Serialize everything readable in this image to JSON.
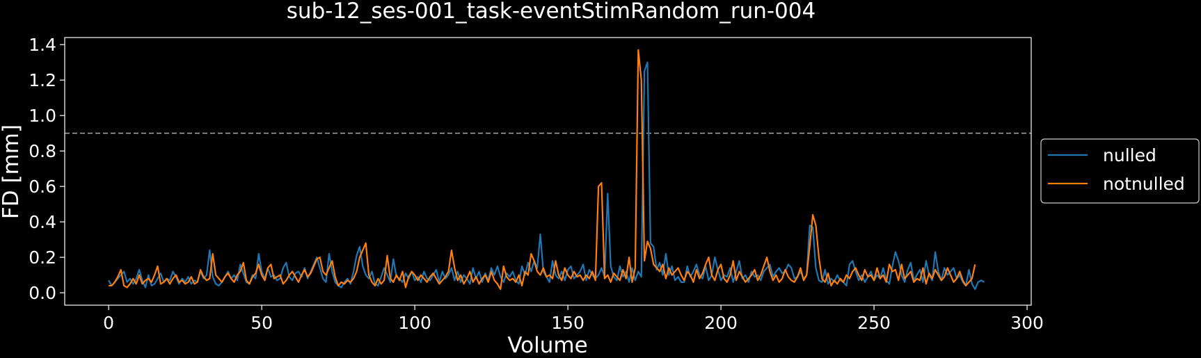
{
  "chart_data": {
    "type": "line",
    "title": "sub-12_ses-001_task-eventStimRandom_run-004",
    "xlabel": "Volume",
    "ylabel": "FD [mm]",
    "xlim": [
      -14.35,
      301.35
    ],
    "ylim": [
      -0.07,
      1.44
    ],
    "xticks": [
      0,
      50,
      100,
      150,
      200,
      250,
      300
    ],
    "yticks": [
      0.0,
      0.2,
      0.4,
      0.6,
      0.8,
      1.0,
      1.2,
      1.4
    ],
    "threshold": 0.9,
    "grid": false,
    "legend_position": "outside-right",
    "colors": {
      "background": "#000000",
      "axes": "#ffffff",
      "text": "#ffffff",
      "threshold_line": "#aaaaaa",
      "legend_border": "#cccccc"
    },
    "series": [
      {
        "name": "nulled",
        "color": "#1f77b4",
        "values": [
          0.07,
          0.04,
          0.06,
          0.08,
          0.1,
          0.12,
          0.06,
          0.08,
          0.05,
          0.08,
          0.13,
          0.07,
          0.03,
          0.1,
          0.04,
          0.05,
          0.08,
          0.11,
          0.06,
          0.08,
          0.07,
          0.12,
          0.09,
          0.05,
          0.08,
          0.06,
          0.09,
          0.05,
          0.07,
          0.06,
          0.12,
          0.08,
          0.1,
          0.24,
          0.09,
          0.05,
          0.04,
          0.06,
          0.09,
          0.12,
          0.08,
          0.1,
          0.07,
          0.16,
          0.11,
          0.06,
          0.05,
          0.1,
          0.08,
          0.22,
          0.12,
          0.08,
          0.14,
          0.09,
          0.1,
          0.07,
          0.08,
          0.14,
          0.17,
          0.09,
          0.07,
          0.11,
          0.12,
          0.09,
          0.14,
          0.08,
          0.12,
          0.16,
          0.2,
          0.14,
          0.08,
          0.06,
          0.22,
          0.12,
          0.06,
          0.04,
          0.03,
          0.06,
          0.08,
          0.05,
          0.12,
          0.21,
          0.26,
          0.15,
          0.1,
          0.08,
          0.12,
          0.05,
          0.04,
          0.09,
          0.14,
          0.1,
          0.06,
          0.19,
          0.09,
          0.08,
          0.06,
          0.11,
          0.08,
          0.12,
          0.07,
          0.09,
          0.06,
          0.12,
          0.08,
          0.07,
          0.1,
          0.13,
          0.06,
          0.12,
          0.08,
          0.1,
          0.14,
          0.07,
          0.12,
          0.06,
          0.1,
          0.08,
          0.05,
          0.14,
          0.08,
          0.12,
          0.06,
          0.11,
          0.07,
          0.14,
          0.1,
          0.15,
          0.09,
          0.06,
          0.11,
          0.09,
          0.12,
          0.07,
          0.05,
          0.15,
          0.1,
          0.17,
          0.12,
          0.18,
          0.14,
          0.33,
          0.12,
          0.09,
          0.06,
          0.18,
          0.1,
          0.08,
          0.12,
          0.07,
          0.13,
          0.15,
          0.08,
          0.1,
          0.12,
          0.16,
          0.07,
          0.13,
          0.1,
          0.08,
          0.1,
          0.14,
          0.09,
          0.56,
          0.15,
          0.09,
          0.07,
          0.15,
          0.09,
          0.12,
          0.06,
          0.14,
          0.07,
          0.12,
          0.09,
          1.25,
          1.3,
          0.28,
          0.26,
          0.13,
          0.17,
          0.1,
          0.22,
          0.1,
          0.15,
          0.07,
          0.09,
          0.06,
          0.06,
          0.15,
          0.09,
          0.12,
          0.16,
          0.1,
          0.08,
          0.15,
          0.07,
          0.1,
          0.2,
          0.13,
          0.07,
          0.1,
          0.09,
          0.14,
          0.06,
          0.12,
          0.18,
          0.08,
          0.1,
          0.06,
          0.12,
          0.09,
          0.1,
          0.07,
          0.12,
          0.14,
          0.16,
          0.09,
          0.12,
          0.14,
          0.11,
          0.12,
          0.16,
          0.14,
          0.08,
          0.09,
          0.12,
          0.08,
          0.1,
          0.38,
          0.37,
          0.14,
          0.07,
          0.06,
          0.13,
          0.05,
          0.08,
          0.06,
          0.1,
          0.07,
          0.06,
          0.04,
          0.16,
          0.18,
          0.12,
          0.07,
          0.1,
          0.06,
          0.09,
          0.12,
          0.07,
          0.1,
          0.08,
          0.14,
          0.07,
          0.05,
          0.15,
          0.23,
          0.18,
          0.1,
          0.06,
          0.13,
          0.17,
          0.07,
          0.1,
          0.13,
          0.06,
          0.18,
          0.1,
          0.07,
          0.23,
          0.12,
          0.07,
          0.14,
          0.1,
          0.12,
          0.14,
          0.08,
          0.1,
          0.06,
          0.04,
          0.13,
          0.05,
          0.02,
          0.06,
          0.07,
          0.06
        ]
      },
      {
        "name": "notnulled",
        "color": "#ff7f0e",
        "values": [
          0.04,
          0.04,
          0.06,
          0.09,
          0.13,
          0.04,
          0.03,
          0.05,
          0.08,
          0.05,
          0.1,
          0.05,
          0.07,
          0.08,
          0.06,
          0.1,
          0.15,
          0.05,
          0.06,
          0.08,
          0.05,
          0.08,
          0.1,
          0.06,
          0.07,
          0.05,
          0.06,
          0.09,
          0.05,
          0.06,
          0.13,
          0.09,
          0.07,
          0.08,
          0.22,
          0.1,
          0.08,
          0.06,
          0.09,
          0.11,
          0.08,
          0.06,
          0.1,
          0.12,
          0.17,
          0.07,
          0.05,
          0.09,
          0.11,
          0.16,
          0.1,
          0.07,
          0.14,
          0.16,
          0.08,
          0.09,
          0.1,
          0.05,
          0.07,
          0.1,
          0.12,
          0.09,
          0.06,
          0.1,
          0.13,
          0.09,
          0.11,
          0.15,
          0.19,
          0.2,
          0.12,
          0.1,
          0.14,
          0.18,
          0.09,
          0.04,
          0.06,
          0.05,
          0.07,
          0.06,
          0.08,
          0.12,
          0.2,
          0.24,
          0.28,
          0.1,
          0.06,
          0.04,
          0.08,
          0.05,
          0.07,
          0.21,
          0.08,
          0.06,
          0.1,
          0.07,
          0.12,
          0.03,
          0.09,
          0.12,
          0.1,
          0.07,
          0.1,
          0.08,
          0.06,
          0.09,
          0.11,
          0.08,
          0.05,
          0.07,
          0.09,
          0.12,
          0.24,
          0.14,
          0.07,
          0.1,
          0.05,
          0.08,
          0.12,
          0.06,
          0.09,
          0.05,
          0.08,
          0.1,
          0.06,
          0.12,
          0.07,
          0.05,
          0.02,
          0.15,
          0.09,
          0.07,
          0.08,
          0.06,
          0.1,
          0.04,
          0.12,
          0.1,
          0.22,
          0.18,
          0.12,
          0.1,
          0.14,
          0.09,
          0.1,
          0.08,
          0.18,
          0.1,
          0.07,
          0.14,
          0.1,
          0.08,
          0.12,
          0.09,
          0.1,
          0.07,
          0.1,
          0.08,
          0.12,
          0.07,
          0.6,
          0.62,
          0.08,
          0.1,
          0.06,
          0.11,
          0.09,
          0.07,
          0.13,
          0.08,
          0.2,
          0.06,
          0.14,
          1.37,
          1.2,
          0.18,
          0.29,
          0.25,
          0.16,
          0.14,
          0.12,
          0.16,
          0.08,
          0.14,
          0.1,
          0.12,
          0.14,
          0.1,
          0.07,
          0.12,
          0.1,
          0.06,
          0.13,
          0.08,
          0.11,
          0.16,
          0.2,
          0.1,
          0.07,
          0.13,
          0.16,
          0.08,
          0.06,
          0.1,
          0.18,
          0.07,
          0.12,
          0.09,
          0.06,
          0.08,
          0.1,
          0.13,
          0.07,
          0.1,
          0.15,
          0.2,
          0.12,
          0.07,
          0.1,
          0.06,
          0.08,
          0.13,
          0.09,
          0.07,
          0.06,
          0.09,
          0.14,
          0.07,
          0.1,
          0.26,
          0.44,
          0.38,
          0.2,
          0.08,
          0.06,
          0.11,
          0.04,
          0.07,
          0.05,
          0.08,
          0.06,
          0.1,
          0.08,
          0.12,
          0.14,
          0.1,
          0.07,
          0.13,
          0.09,
          0.1,
          0.07,
          0.14,
          0.08,
          0.1,
          0.06,
          0.16,
          0.12,
          0.13,
          0.07,
          0.16,
          0.08,
          0.1,
          0.12,
          0.06,
          0.08,
          0.07,
          0.14,
          0.05,
          0.11,
          0.08,
          0.13,
          0.1,
          0.07,
          0.09,
          0.14,
          0.1,
          0.06,
          0.08,
          0.12,
          0.07,
          0.04,
          0.06,
          0.08,
          0.16
        ]
      }
    ]
  }
}
